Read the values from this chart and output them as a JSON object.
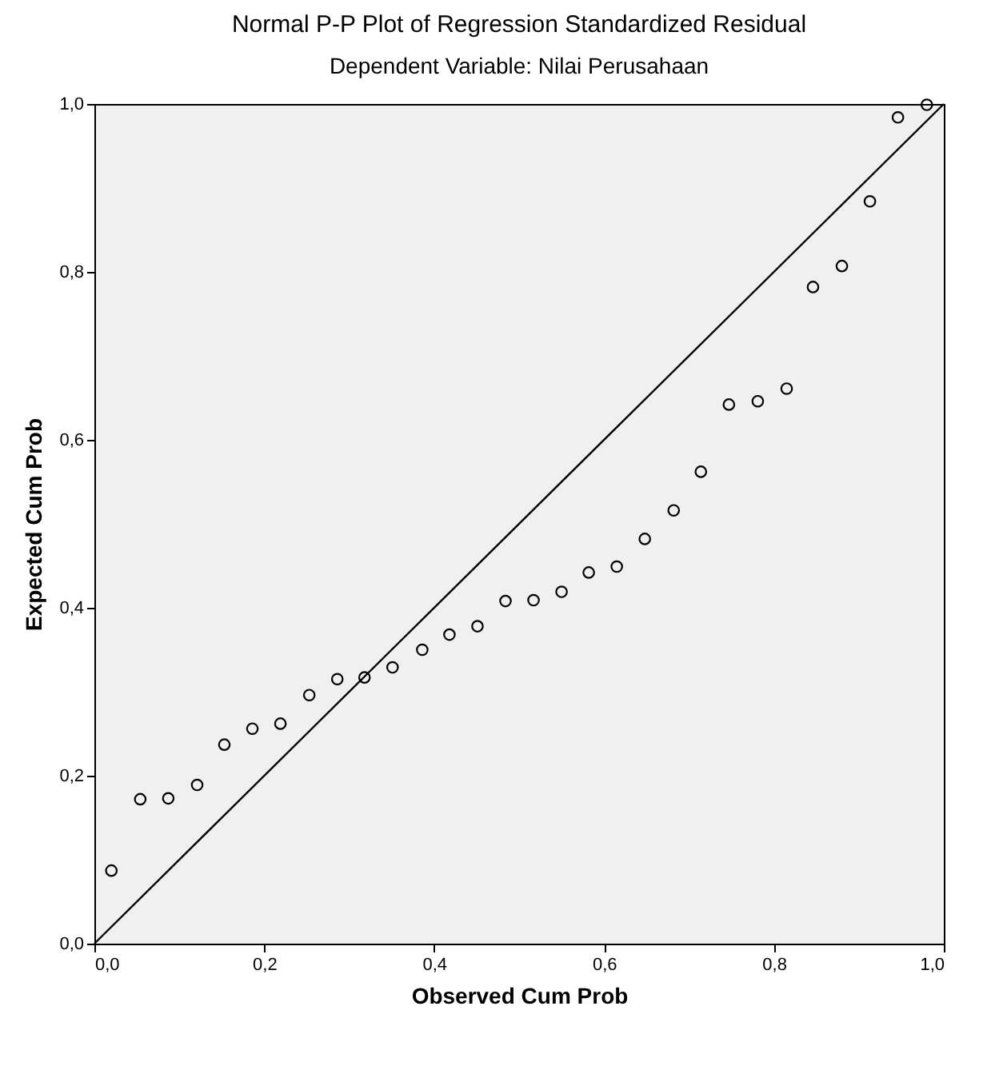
{
  "chart_data": {
    "type": "scatter",
    "title": "Normal P-P Plot of Regression Standardized Residual",
    "subtitle": "Dependent Variable: Nilai Perusahaan",
    "xlabel": "Observed Cum Prob",
    "ylabel": "Expected Cum Prob",
    "xlim": [
      0,
      1
    ],
    "ylim": [
      0,
      1
    ],
    "xticks": [
      {
        "value": 0,
        "label": "0,0"
      },
      {
        "value": 0.2,
        "label": "0,2"
      },
      {
        "value": 0.4,
        "label": "0,4"
      },
      {
        "value": 0.6,
        "label": "0,6"
      },
      {
        "value": 0.8,
        "label": "0,8"
      },
      {
        "value": 1,
        "label": "1,0"
      }
    ],
    "yticks": [
      {
        "value": 0,
        "label": "0,0"
      },
      {
        "value": 0.2,
        "label": "0,2"
      },
      {
        "value": 0.4,
        "label": "0,4"
      },
      {
        "value": 0.6,
        "label": "0,6"
      },
      {
        "value": 0.8,
        "label": "0,8"
      },
      {
        "value": 1,
        "label": "1,0"
      }
    ],
    "grid": false,
    "series": [
      {
        "color": "#000000",
        "marker": "circle",
        "x": [
          0.02,
          0.054,
          0.087,
          0.121,
          0.153,
          0.186,
          0.219,
          0.253,
          0.286,
          0.318,
          0.351,
          0.386,
          0.418,
          0.451,
          0.484,
          0.517,
          0.55,
          0.582,
          0.615,
          0.648,
          0.682,
          0.714,
          0.747,
          0.781,
          0.815,
          0.846,
          0.88,
          0.913,
          0.946,
          0.98
        ],
        "values": [
          0.087,
          0.172,
          0.173,
          0.189,
          0.237,
          0.256,
          0.262,
          0.296,
          0.315,
          0.317,
          0.329,
          0.35,
          0.368,
          0.378,
          0.408,
          0.409,
          0.419,
          0.442,
          0.449,
          0.482,
          0.516,
          0.562,
          0.642,
          0.646,
          0.661,
          0.782,
          0.807,
          0.884,
          0.984,
          0.999
        ]
      },
      {
        "type": "line",
        "color": "#000000",
        "line_style": "solid",
        "x": [
          0,
          1
        ],
        "values": [
          0,
          1
        ]
      }
    ]
  }
}
